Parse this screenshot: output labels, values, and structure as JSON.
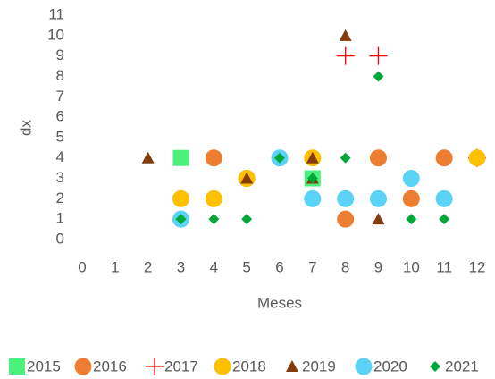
{
  "chart_data": {
    "type": "scatter",
    "x_label": "Meses",
    "y_label": "dx",
    "xlim": [
      0,
      12
    ],
    "xticks": [
      0,
      1,
      2,
      3,
      4,
      5,
      6,
      7,
      8,
      9,
      10,
      11,
      12
    ],
    "ylim": [
      0,
      11
    ],
    "yticks": [
      0,
      1,
      2,
      3,
      4,
      5,
      6,
      7,
      8,
      9,
      10,
      11
    ],
    "legend": "bottom",
    "series": [
      {
        "name": "2015",
        "color": "#4bf17a",
        "marker": "square",
        "x": [
          3,
          7
        ],
        "values": [
          4,
          3
        ]
      },
      {
        "name": "2016",
        "color": "#ed7d31",
        "marker": "circle",
        "x": [
          4,
          5,
          8,
          9,
          10,
          11
        ],
        "values": [
          4,
          3,
          1,
          4,
          2,
          4
        ]
      },
      {
        "name": "2017",
        "color": "#ff0000",
        "marker": "plus",
        "x": [
          8,
          9,
          12
        ],
        "values": [
          9,
          9,
          4
        ]
      },
      {
        "name": "2018",
        "color": "#ffc000",
        "marker": "circle",
        "x": [
          3,
          4,
          5,
          7,
          12
        ],
        "values": [
          2,
          2,
          3,
          4,
          4
        ]
      },
      {
        "name": "2019",
        "color": "#843c0c",
        "marker": "triangle",
        "x": [
          2,
          5,
          7,
          7,
          8,
          9
        ],
        "values": [
          4,
          3,
          4,
          3,
          10,
          1
        ]
      },
      {
        "name": "2020",
        "color": "#5ad3f7",
        "marker": "circle",
        "x": [
          3,
          6,
          7,
          8,
          9,
          10,
          11
        ],
        "values": [
          1,
          4,
          2,
          2,
          2,
          3,
          2
        ]
      },
      {
        "name": "2021",
        "color": "#00a83a",
        "marker": "diamond",
        "x": [
          3,
          4,
          5,
          6,
          7,
          8,
          9,
          10,
          11
        ],
        "values": [
          1,
          1,
          1,
          4,
          3,
          4,
          8,
          1,
          1
        ]
      }
    ]
  }
}
